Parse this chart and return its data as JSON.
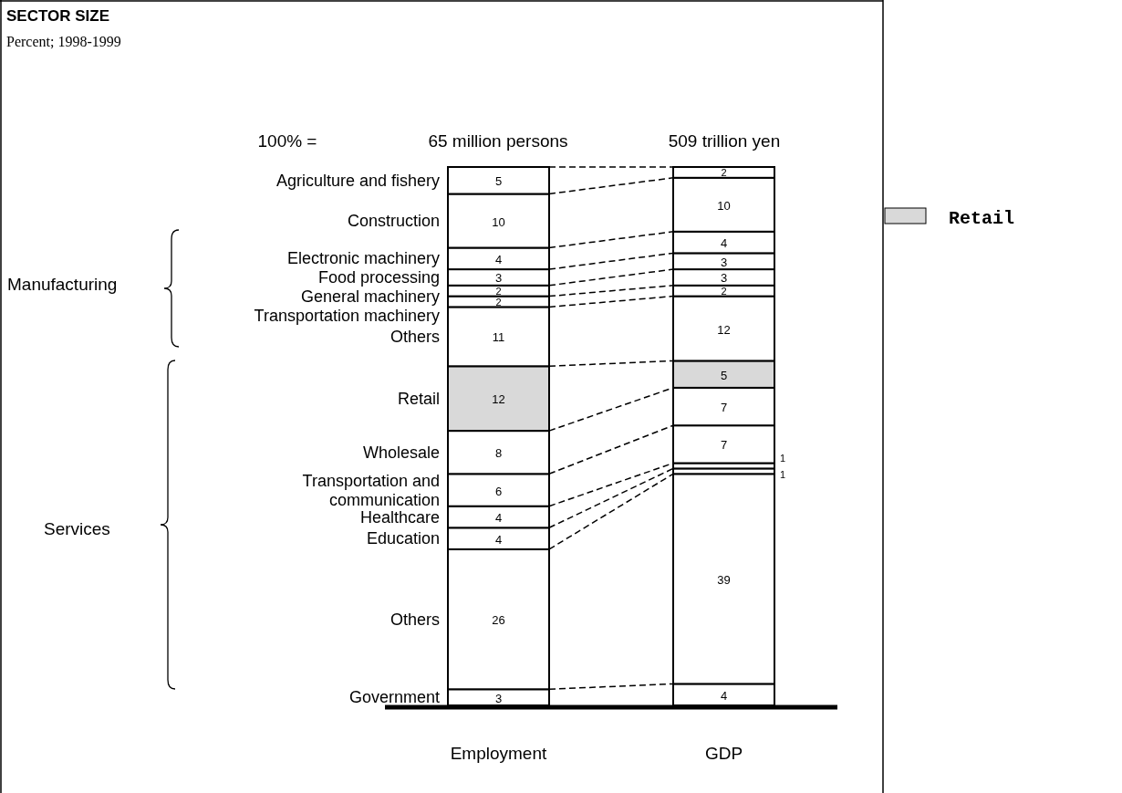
{
  "chart_data": {
    "type": "bar",
    "stacked": true,
    "title": "SECTOR SIZE",
    "subtitle": "Percent; 1998-1999",
    "categories": [
      "Employment",
      "GDP"
    ],
    "data_labels": true,
    "legend": "right",
    "annotations": [
      "100% =",
      "65  million persons",
      "509 trillion yen",
      "Manufacturing",
      "Services"
    ],
    "series": [
      {
        "name": "Government",
        "color": "#ffffff",
        "values": [
          3,
          4
        ]
      },
      {
        "name": "Others",
        "color": "#ffffff",
        "values": [
          26,
          39
        ]
      },
      {
        "name": "Education",
        "color": "#ffffff",
        "values": [
          4,
          1
        ]
      },
      {
        "name": "Healthcare",
        "color": "#ffffff",
        "values": [
          4,
          1
        ]
      },
      {
        "name": "Transportation and communication",
        "color": "#ffffff",
        "values": [
          6,
          7
        ]
      },
      {
        "name": "Wholesale",
        "color": "#ffffff",
        "values": [
          8,
          7
        ]
      },
      {
        "name": "Retail",
        "color": "#d9d9d9",
        "values": [
          12,
          5
        ]
      },
      {
        "name": "Others",
        "color": "#ffffff",
        "values": [
          11,
          12
        ]
      },
      {
        "name": "Transportation machinery",
        "color": "#ffffff",
        "values": [
          2,
          2
        ]
      },
      {
        "name": "General machinery",
        "color": "#ffffff",
        "values": [
          2,
          3
        ]
      },
      {
        "name": "Food processing",
        "color": "#ffffff",
        "values": [
          3,
          3
        ]
      },
      {
        "name": "Electronic machinery",
        "color": "#ffffff",
        "values": [
          4,
          4
        ]
      },
      {
        "name": "Construction",
        "color": "#ffffff",
        "values": [
          10,
          10
        ]
      },
      {
        "name": "Agriculture and fishery",
        "color": "#ffffff",
        "values": [
          5,
          2
        ]
      }
    ]
  }
}
